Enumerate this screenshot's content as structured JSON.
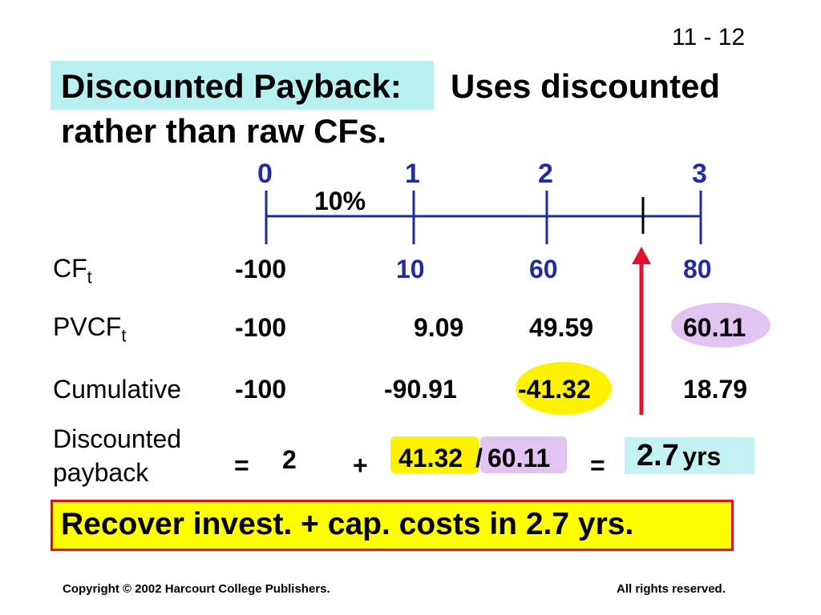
{
  "slide_number": "11 - 12",
  "title": {
    "highlighted": "Discounted Payback:",
    "rest_line1": "Uses discounted",
    "line2": "rather than raw CFs."
  },
  "timeline": {
    "periods": [
      "0",
      "1",
      "2",
      "3"
    ],
    "rate": "10%"
  },
  "rows": {
    "cf": {
      "label": "CF",
      "sub": "t",
      "values": [
        "-100",
        "10",
        "60",
        "80"
      ]
    },
    "pvcf": {
      "label": "PVCF",
      "sub": "t",
      "values": [
        "-100",
        "9.09",
        "49.59",
        "60.11"
      ]
    },
    "cumulative": {
      "label": "Cumulative",
      "values": [
        "-100",
        "-90.91",
        "-41.32",
        "18.79"
      ]
    }
  },
  "payback": {
    "label_line1": "Discounted",
    "label_line2": "payback",
    "equals1": "=",
    "years": "2",
    "plus": "+",
    "numerator": "41.32",
    "slash": "/",
    "denominator": "60.11",
    "equals2": "=",
    "result_value": "2.7",
    "result_unit": "yrs"
  },
  "conclusion": "Recover invest. + cap. costs in 2.7 yrs.",
  "footer": {
    "left": "Copyright © 2002 Harcourt College Publishers.",
    "right": "All rights reserved."
  },
  "colors": {
    "title_highlight": "#B8F0F0",
    "timeline_blue": "#1F2DA0",
    "arrow_red": "#E0102E",
    "yellow": "#FFF200",
    "lavender": "#E2C4F2",
    "box_border": "#E01010"
  }
}
